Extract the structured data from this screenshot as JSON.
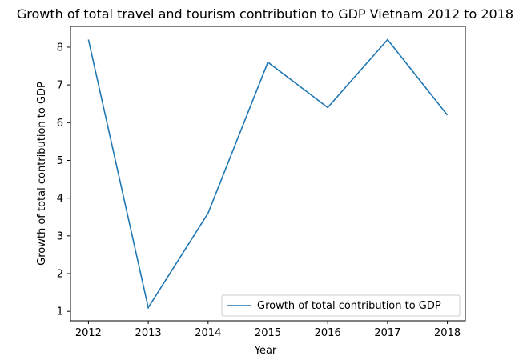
{
  "chart_data": {
    "type": "line",
    "title": "Growth of total travel and tourism contribution to GDP Vietnam 2012 to 2018",
    "xlabel": "Year",
    "ylabel": "Growth of total contribution to GDP",
    "x": [
      2012,
      2013,
      2014,
      2015,
      2016,
      2017,
      2018
    ],
    "series": [
      {
        "name": "Growth of total contribution to GDP",
        "values": [
          8.2,
          1.1,
          3.6,
          7.6,
          6.4,
          8.2,
          6.2
        ],
        "color": "#1f77b4"
      }
    ],
    "yticks": [
      1,
      2,
      3,
      4,
      5,
      6,
      7,
      8
    ],
    "ylim": [
      0.75,
      8.55
    ],
    "xlim": [
      2011.7,
      2018.3
    ],
    "grid": false,
    "legend_position": "lower-right"
  }
}
